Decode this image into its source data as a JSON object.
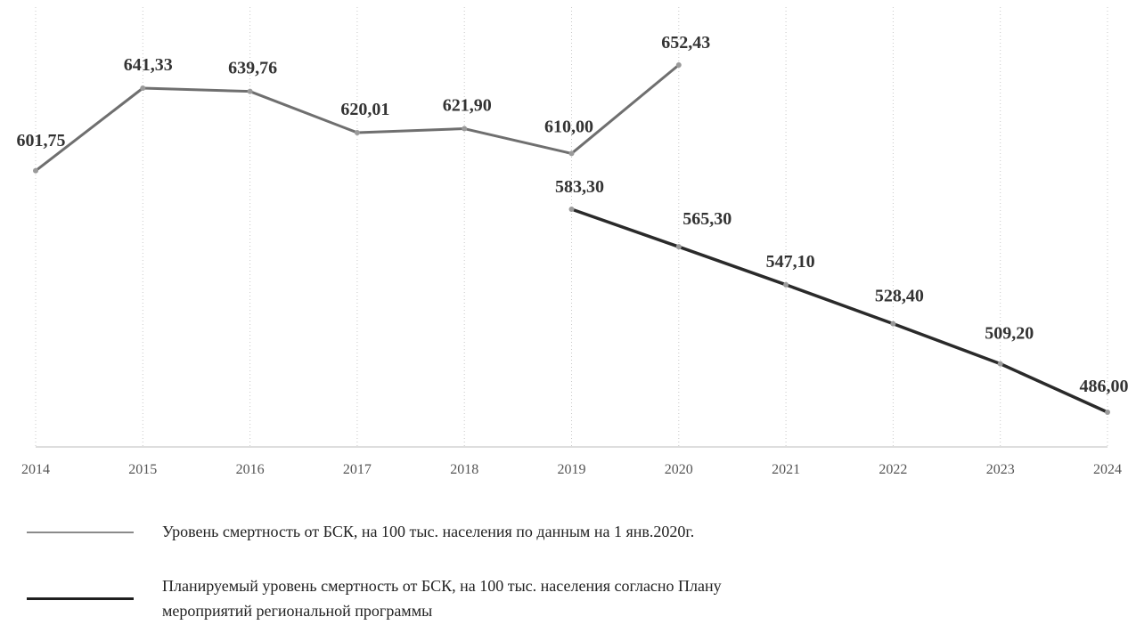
{
  "chart_data": {
    "type": "line",
    "categories": [
      "2014",
      "2015",
      "2016",
      "2017",
      "2018",
      "2019",
      "2020",
      "2021",
      "2022",
      "2023",
      "2024"
    ],
    "ylim": [
      460,
      665
    ],
    "grid": "vertical-dotted",
    "series": [
      {
        "name": "Уровень смертность от БСК, на 100 тыс. населения по данным на 1 янв.2020г.",
        "color": "#6f6f6f",
        "points": [
          {
            "x": "2014",
            "y": 601.75,
            "label": "601,75"
          },
          {
            "x": "2015",
            "y": 641.33,
            "label": "641,33"
          },
          {
            "x": "2016",
            "y": 639.76,
            "label": "639,76"
          },
          {
            "x": "2017",
            "y": 620.01,
            "label": "620,01"
          },
          {
            "x": "2018",
            "y": 621.9,
            "label": "621,90"
          },
          {
            "x": "2019",
            "y": 610.0,
            "label": "610,00"
          },
          {
            "x": "2020",
            "y": 652.43,
            "label": "652,43"
          }
        ]
      },
      {
        "name": "Планируемый уровень смертность  от БСК, на 100 тыс. населения согласно Плану мероприятий региональной программы",
        "color": "#2a2a2a",
        "points": [
          {
            "x": "2019",
            "y": 583.3,
            "label": "583,30"
          },
          {
            "x": "2020",
            "y": 565.3,
            "label": "565,30"
          },
          {
            "x": "2021",
            "y": 547.1,
            "label": "547,10"
          },
          {
            "x": "2022",
            "y": 528.4,
            "label": "528,40"
          },
          {
            "x": "2023",
            "y": 509.2,
            "label": "509,20"
          },
          {
            "x": "2024",
            "y": 486.0,
            "label": "486,00"
          }
        ]
      }
    ]
  },
  "legend": {
    "items": [
      {
        "text": "Уровень смертность от БСК, на 100 тыс. населения по данным на 1 янв.2020г.",
        "color": "#8a8a8a"
      },
      {
        "line1": "Планируемый уровень смертность  от БСК, на 100 тыс. населения согласно Плану",
        "line2": "мероприятий региональной программы",
        "color": "#1f1f1f"
      }
    ]
  }
}
